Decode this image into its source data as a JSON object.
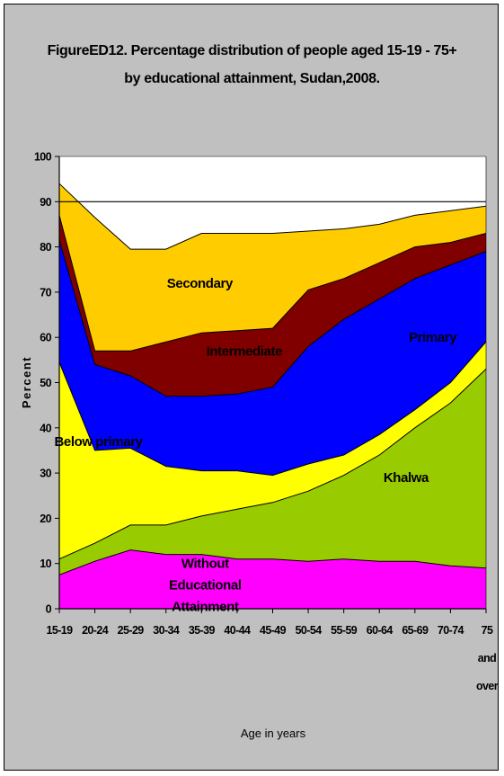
{
  "chart_data": {
    "type": "area",
    "title": "FigureED12. Percentage distribution of people aged 15-19 - 75+",
    "subtitle": "by educational attainment, Sudan,2008.",
    "xlabel": "Age in years",
    "ylabel": "Percent",
    "ylim": [
      0,
      100
    ],
    "y_ticks": [
      "0",
      "10",
      "20",
      "30",
      "40",
      "50",
      "60",
      "70",
      "80",
      "90",
      "100"
    ],
    "grid": false,
    "stacked": true,
    "categories": [
      "15-19",
      "20-24",
      "25-29",
      "30-34",
      "35-39",
      "40-44",
      "45-49",
      "50-54",
      "55-59",
      "60-64",
      "65-69",
      "70-74",
      "75 and over"
    ],
    "category_lines": [
      [
        "15-19"
      ],
      [
        "20-24"
      ],
      [
        "25-29"
      ],
      [
        "30-34"
      ],
      [
        "35-39"
      ],
      [
        "40-44"
      ],
      [
        "45-49"
      ],
      [
        "50-54"
      ],
      [
        "55-59"
      ],
      [
        "60-64"
      ],
      [
        "65-69"
      ],
      [
        "70-74"
      ],
      [
        "75",
        "and",
        "over"
      ]
    ],
    "reference_line": 90,
    "series": [
      {
        "name": "Without Educational Attainment",
        "label_lines": [
          "Without",
          "Educational",
          "Attainment"
        ],
        "color": "#ff00ff",
        "values": [
          7.5,
          10.5,
          13,
          12,
          12,
          11,
          11,
          10.5,
          11,
          10.5,
          10.5,
          9.5,
          9
        ]
      },
      {
        "name": "Khalwa",
        "label_lines": [
          "Khalwa"
        ],
        "color": "#99cc00",
        "values": [
          3.5,
          4,
          5.5,
          6.5,
          8.5,
          11,
          12.5,
          15.5,
          18.5,
          23.5,
          29.5,
          36,
          44
        ]
      },
      {
        "name": "Below primary",
        "label_lines": [
          "Below primary"
        ],
        "color": "#ffff00",
        "values": [
          43.5,
          20.5,
          17,
          13,
          10,
          8.5,
          6,
          6,
          4.5,
          4.5,
          4,
          4.5,
          6
        ]
      },
      {
        "name": "Primary",
        "label_lines": [
          "Primary"
        ],
        "color": "#0000ff",
        "values": [
          27,
          19,
          16,
          15.5,
          16.5,
          17,
          19.5,
          26,
          30,
          30,
          29,
          26,
          20
        ]
      },
      {
        "name": "Intermediate",
        "label_lines": [
          "Intermediate"
        ],
        "color": "#800000",
        "values": [
          5.5,
          3,
          5.5,
          12,
          14,
          14,
          13,
          12.5,
          9,
          8,
          7,
          5,
          4
        ]
      },
      {
        "name": "Secondary",
        "label_lines": [
          "Secondary"
        ],
        "color": "#ffcc00",
        "values": [
          7,
          29.5,
          22.5,
          20.5,
          22,
          21.5,
          21,
          13,
          11,
          8.5,
          7,
          7,
          6
        ]
      }
    ]
  }
}
